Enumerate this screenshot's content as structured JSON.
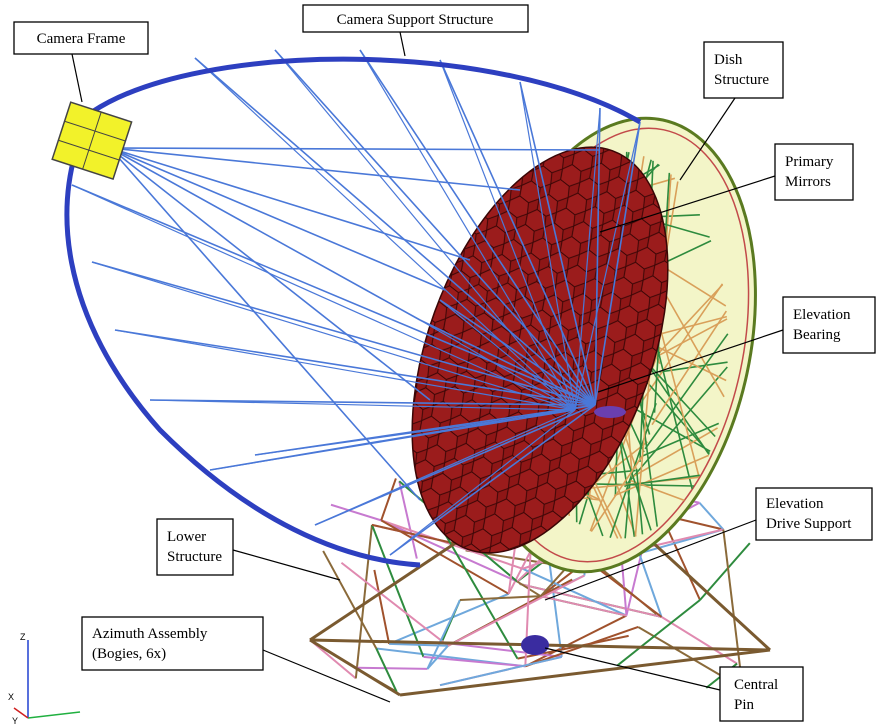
{
  "labels": {
    "camera_frame": "Camera Frame",
    "camera_support_structure": "Camera Support Structure",
    "dish_structure": [
      "Dish",
      "Structure"
    ],
    "primary_mirrors": [
      "Primary",
      "Mirrors"
    ],
    "elevation_bearing": [
      "Elevation",
      "Bearing"
    ],
    "elevation_drive_support": [
      "Elevation",
      "Drive Support"
    ],
    "lower_structure": [
      "Lower",
      "Structure"
    ],
    "azimuth_assembly": [
      "Azimuth Assembly",
      "(Bogies, 6x)"
    ],
    "central_pin": [
      "Central",
      "Pin"
    ]
  },
  "axes": {
    "z": "Z",
    "y": "Y",
    "x": "X"
  }
}
